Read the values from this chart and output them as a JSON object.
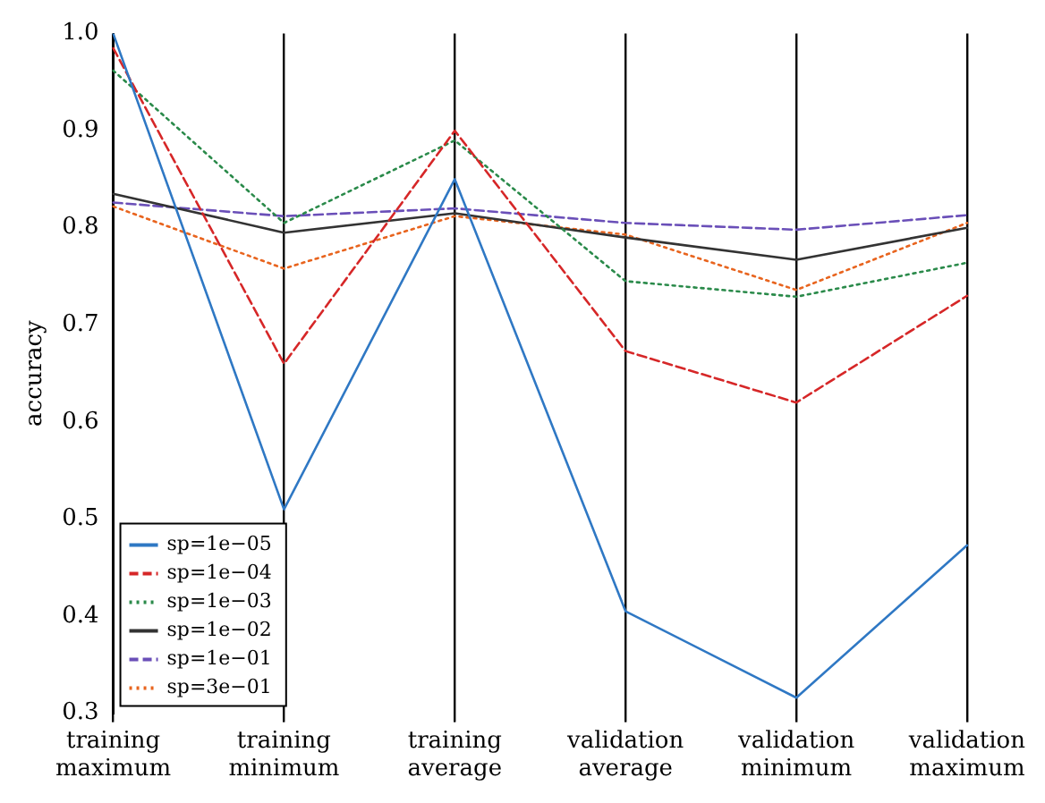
{
  "chart_data": {
    "type": "line",
    "ylabel": "accuracy",
    "categories": [
      "training maximum",
      "training minimum",
      "training average",
      "validation average",
      "validation minimum",
      "validation maximum"
    ],
    "series": [
      {
        "name": "sp=1e−05",
        "color": "#2f78c4",
        "line_style": "solid",
        "values": [
          1.0,
          0.51,
          0.85,
          0.405,
          0.316,
          0.473
        ]
      },
      {
        "name": "sp=1e−04",
        "color": "#d62728",
        "line_style": "dashed",
        "values": [
          0.985,
          0.66,
          0.9,
          0.673,
          0.62,
          0.73
        ]
      },
      {
        "name": "sp=1e−03",
        "color": "#2a8a4a",
        "line_style": "dotted",
        "values": [
          0.962,
          0.805,
          0.89,
          0.745,
          0.729,
          0.764
        ]
      },
      {
        "name": "sp=1e−02",
        "color": "#333333",
        "line_style": "solid",
        "values": [
          0.835,
          0.795,
          0.815,
          0.79,
          0.767,
          0.8
        ]
      },
      {
        "name": "sp=1e−01",
        "color": "#6a4fb8",
        "line_style": "dashed",
        "values": [
          0.826,
          0.812,
          0.82,
          0.805,
          0.798,
          0.813
        ]
      },
      {
        "name": "sp=3e−01",
        "color": "#e8641e",
        "line_style": "dotted",
        "values": [
          0.822,
          0.758,
          0.812,
          0.793,
          0.736,
          0.805
        ]
      }
    ],
    "ylim": [
      0.3,
      1.0
    ],
    "yticks": [
      {
        "value": 0.3,
        "label": "0.3"
      },
      {
        "value": 0.4,
        "label": "0.4"
      },
      {
        "value": 0.5,
        "label": "0.5"
      },
      {
        "value": 0.6,
        "label": "0.6"
      },
      {
        "value": 0.7,
        "label": "0.7"
      },
      {
        "value": 0.8,
        "label": "0.8"
      },
      {
        "value": 0.9,
        "label": "0.9"
      },
      {
        "value": 1.0,
        "label": "1.0"
      }
    ],
    "grid": "x",
    "legend": "bottom left",
    "marker": "none"
  }
}
